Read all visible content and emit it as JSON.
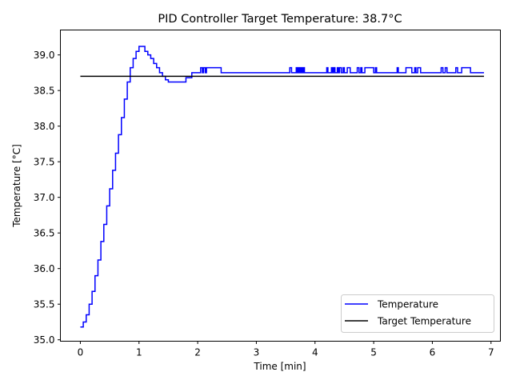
{
  "chart_data": {
    "type": "line",
    "title": "PID Controller Target Temperature: 38.7°C",
    "xlabel": "Time [min]",
    "ylabel": "Temperature [°C]",
    "xlim": [
      -0.34,
      7.16
    ],
    "ylim": [
      34.98,
      39.35
    ],
    "xticks": [
      0,
      1,
      2,
      3,
      4,
      5,
      6,
      7
    ],
    "yticks": [
      35.0,
      35.5,
      36.0,
      36.5,
      37.0,
      37.5,
      38.0,
      38.5,
      39.0
    ],
    "xtick_labels": [
      "0",
      "1",
      "2",
      "3",
      "4",
      "5",
      "6",
      "7"
    ],
    "ytick_labels": [
      "35.0",
      "35.5",
      "36.0",
      "36.5",
      "37.0",
      "37.5",
      "38.0",
      "38.5",
      "39.0"
    ],
    "grid": false,
    "legend_position": "lower-right",
    "series": [
      {
        "name": "Temperature",
        "color": "#0000ff",
        "step": true,
        "x": [
          0,
          0.05,
          0.1,
          0.15,
          0.2,
          0.25,
          0.3,
          0.35,
          0.4,
          0.45,
          0.5,
          0.55,
          0.6,
          0.65,
          0.7,
          0.75,
          0.8,
          0.85,
          0.9,
          0.95,
          1.0,
          1.05,
          1.1,
          1.15,
          1.2,
          1.25,
          1.3,
          1.35,
          1.4,
          1.45,
          1.5,
          1.55,
          1.6,
          1.7,
          1.8,
          1.85,
          1.9,
          1.95,
          2.0,
          2.05,
          2.08,
          2.1,
          2.13,
          2.15,
          2.35,
          2.4,
          3.57,
          3.6,
          3.68,
          3.7,
          3.72,
          3.74,
          3.76,
          3.78,
          3.8,
          3.82,
          3.85,
          4.2,
          4.22,
          4.28,
          4.3,
          4.32,
          4.34,
          4.38,
          4.4,
          4.42,
          4.45,
          4.48,
          4.5,
          4.55,
          4.6,
          4.72,
          4.75,
          4.78,
          4.8,
          4.85,
          4.9,
          5.0,
          5.03,
          5.05,
          5.4,
          5.42,
          5.55,
          5.6,
          5.65,
          5.7,
          5.72,
          5.75,
          5.8,
          5.85,
          6.15,
          6.18,
          6.22,
          6.25,
          6.4,
          6.43,
          6.5,
          6.6,
          6.65,
          6.88
        ],
        "y": [
          35.18,
          35.25,
          35.35,
          35.5,
          35.68,
          35.9,
          36.12,
          36.38,
          36.62,
          36.88,
          37.12,
          37.38,
          37.62,
          37.88,
          38.12,
          38.38,
          38.62,
          38.82,
          38.95,
          39.05,
          39.12,
          39.12,
          39.05,
          39.0,
          38.95,
          38.88,
          38.82,
          38.75,
          38.7,
          38.65,
          38.62,
          38.62,
          38.62,
          38.62,
          38.68,
          38.68,
          38.75,
          38.75,
          38.75,
          38.82,
          38.75,
          38.82,
          38.75,
          38.82,
          38.82,
          38.75,
          38.82,
          38.75,
          38.82,
          38.75,
          38.82,
          38.75,
          38.82,
          38.75,
          38.82,
          38.75,
          38.75,
          38.82,
          38.75,
          38.82,
          38.75,
          38.82,
          38.75,
          38.82,
          38.75,
          38.82,
          38.75,
          38.82,
          38.75,
          38.82,
          38.75,
          38.82,
          38.75,
          38.82,
          38.75,
          38.82,
          38.82,
          38.75,
          38.82,
          38.75,
          38.82,
          38.75,
          38.82,
          38.82,
          38.75,
          38.82,
          38.75,
          38.82,
          38.75,
          38.75,
          38.82,
          38.75,
          38.82,
          38.75,
          38.82,
          38.75,
          38.82,
          38.82,
          38.75,
          38.75
        ]
      },
      {
        "name": "Target Temperature",
        "color": "#000000",
        "step": false,
        "x": [
          0,
          6.88
        ],
        "y": [
          38.7,
          38.7
        ]
      }
    ]
  }
}
